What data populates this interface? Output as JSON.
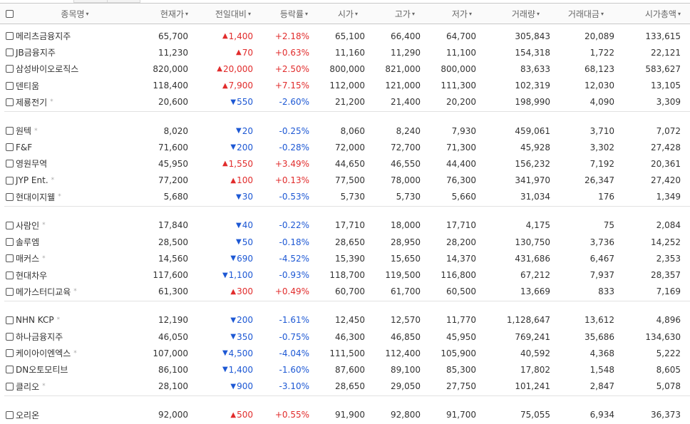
{
  "headers": [
    {
      "label": "종목명",
      "sortable": true
    },
    {
      "label": "현재가",
      "sortable": true
    },
    {
      "label": "전일대비",
      "sortable": true
    },
    {
      "label": "등락률",
      "sortable": true
    },
    {
      "label": "시가",
      "sortable": true
    },
    {
      "label": "고가",
      "sortable": true
    },
    {
      "label": "저가",
      "sortable": true
    },
    {
      "label": "거래량",
      "sortable": true
    },
    {
      "label": "거래대금",
      "sortable": true
    },
    {
      "label": "시가총액",
      "sortable": true
    }
  ],
  "caret_glyph": "▾",
  "star_glyph": "*",
  "colors": {
    "up": "#e12c2c",
    "down": "#1d58d4"
  },
  "groups": [
    {
      "rows": [
        {
          "name": "메리츠금융지주",
          "star": false,
          "price": "65,700",
          "dir": "up",
          "change": "1,400",
          "rate": "+2.18%",
          "open": "65,100",
          "high": "66,400",
          "low": "64,700",
          "volume": "305,843",
          "amount": "20,089",
          "cap": "133,615"
        },
        {
          "name": "JB금융지주",
          "star": false,
          "price": "11,230",
          "dir": "up",
          "change": "70",
          "rate": "+0.63%",
          "open": "11,160",
          "high": "11,290",
          "low": "11,100",
          "volume": "154,318",
          "amount": "1,722",
          "cap": "22,121"
        },
        {
          "name": "삼성바이오로직스",
          "star": false,
          "price": "820,000",
          "dir": "up",
          "change": "20,000",
          "rate": "+2.50%",
          "open": "800,000",
          "high": "821,000",
          "low": "800,000",
          "volume": "83,633",
          "amount": "68,123",
          "cap": "583,627"
        },
        {
          "name": "덴티움",
          "star": false,
          "price": "118,400",
          "dir": "up",
          "change": "7,900",
          "rate": "+7.15%",
          "open": "112,000",
          "high": "121,000",
          "low": "111,300",
          "volume": "102,319",
          "amount": "12,030",
          "cap": "13,105"
        },
        {
          "name": "제룡전기",
          "star": true,
          "price": "20,600",
          "dir": "down",
          "change": "550",
          "rate": "-2.60%",
          "open": "21,200",
          "high": "21,400",
          "low": "20,200",
          "volume": "198,990",
          "amount": "4,090",
          "cap": "3,309"
        }
      ]
    },
    {
      "rows": [
        {
          "name": "원텍",
          "star": true,
          "price": "8,020",
          "dir": "down",
          "change": "20",
          "rate": "-0.25%",
          "open": "8,060",
          "high": "8,240",
          "low": "7,930",
          "volume": "459,061",
          "amount": "3,710",
          "cap": "7,072"
        },
        {
          "name": "F&F",
          "star": false,
          "price": "71,600",
          "dir": "down",
          "change": "200",
          "rate": "-0.28%",
          "open": "72,000",
          "high": "72,700",
          "low": "71,300",
          "volume": "45,928",
          "amount": "3,302",
          "cap": "27,428"
        },
        {
          "name": "영원무역",
          "star": false,
          "price": "45,950",
          "dir": "up",
          "change": "1,550",
          "rate": "+3.49%",
          "open": "44,650",
          "high": "46,550",
          "low": "44,400",
          "volume": "156,232",
          "amount": "7,192",
          "cap": "20,361"
        },
        {
          "name": "JYP Ent.",
          "star": true,
          "price": "77,200",
          "dir": "up",
          "change": "100",
          "rate": "+0.13%",
          "open": "77,500",
          "high": "78,000",
          "low": "76,300",
          "volume": "341,970",
          "amount": "26,347",
          "cap": "27,420"
        },
        {
          "name": "현대이지웰",
          "star": true,
          "price": "5,680",
          "dir": "down",
          "change": "30",
          "rate": "-0.53%",
          "open": "5,730",
          "high": "5,730",
          "low": "5,660",
          "volume": "31,034",
          "amount": "176",
          "cap": "1,349"
        }
      ]
    },
    {
      "rows": [
        {
          "name": "사람인",
          "star": true,
          "price": "17,840",
          "dir": "down",
          "change": "40",
          "rate": "-0.22%",
          "open": "17,710",
          "high": "18,000",
          "low": "17,710",
          "volume": "4,175",
          "amount": "75",
          "cap": "2,084"
        },
        {
          "name": "솔루엠",
          "star": false,
          "price": "28,500",
          "dir": "down",
          "change": "50",
          "rate": "-0.18%",
          "open": "28,650",
          "high": "28,950",
          "low": "28,200",
          "volume": "130,750",
          "amount": "3,736",
          "cap": "14,252"
        },
        {
          "name": "매커스",
          "star": true,
          "price": "14,560",
          "dir": "down",
          "change": "690",
          "rate": "-4.52%",
          "open": "15,390",
          "high": "15,650",
          "low": "14,370",
          "volume": "431,686",
          "amount": "6,467",
          "cap": "2,353"
        },
        {
          "name": "현대차우",
          "star": false,
          "price": "117,600",
          "dir": "down",
          "change": "1,100",
          "rate": "-0.93%",
          "open": "118,700",
          "high": "119,500",
          "low": "116,800",
          "volume": "67,212",
          "amount": "7,937",
          "cap": "28,357"
        },
        {
          "name": "메가스터디교육",
          "star": true,
          "price": "61,300",
          "dir": "up",
          "change": "300",
          "rate": "+0.49%",
          "open": "60,700",
          "high": "61,700",
          "low": "60,500",
          "volume": "13,669",
          "amount": "833",
          "cap": "7,169"
        }
      ]
    },
    {
      "rows": [
        {
          "name": "NHN KCP",
          "star": true,
          "price": "12,190",
          "dir": "down",
          "change": "200",
          "rate": "-1.61%",
          "open": "12,450",
          "high": "12,570",
          "low": "11,770",
          "volume": "1,128,647",
          "amount": "13,612",
          "cap": "4,896"
        },
        {
          "name": "하나금융지주",
          "star": false,
          "price": "46,050",
          "dir": "down",
          "change": "350",
          "rate": "-0.75%",
          "open": "46,300",
          "high": "46,850",
          "low": "45,950",
          "volume": "769,241",
          "amount": "35,686",
          "cap": "134,630"
        },
        {
          "name": "케이아이엔엑스",
          "star": true,
          "price": "107,000",
          "dir": "down",
          "change": "4,500",
          "rate": "-4.04%",
          "open": "111,500",
          "high": "112,400",
          "low": "105,900",
          "volume": "40,592",
          "amount": "4,368",
          "cap": "5,222"
        },
        {
          "name": "DN오토모티브",
          "star": false,
          "price": "86,100",
          "dir": "down",
          "change": "1,400",
          "rate": "-1.60%",
          "open": "87,600",
          "high": "89,100",
          "low": "85,300",
          "volume": "17,802",
          "amount": "1,548",
          "cap": "8,605"
        },
        {
          "name": "클리오",
          "star": true,
          "price": "28,100",
          "dir": "down",
          "change": "900",
          "rate": "-3.10%",
          "open": "28,650",
          "high": "29,050",
          "low": "27,750",
          "volume": "101,241",
          "amount": "2,847",
          "cap": "5,078"
        }
      ]
    },
    {
      "rows": [
        {
          "name": "오리온",
          "star": false,
          "price": "92,000",
          "dir": "up",
          "change": "500",
          "rate": "+0.55%",
          "open": "91,900",
          "high": "92,800",
          "low": "91,700",
          "volume": "75,055",
          "amount": "6,934",
          "cap": "36,373"
        }
      ]
    }
  ]
}
